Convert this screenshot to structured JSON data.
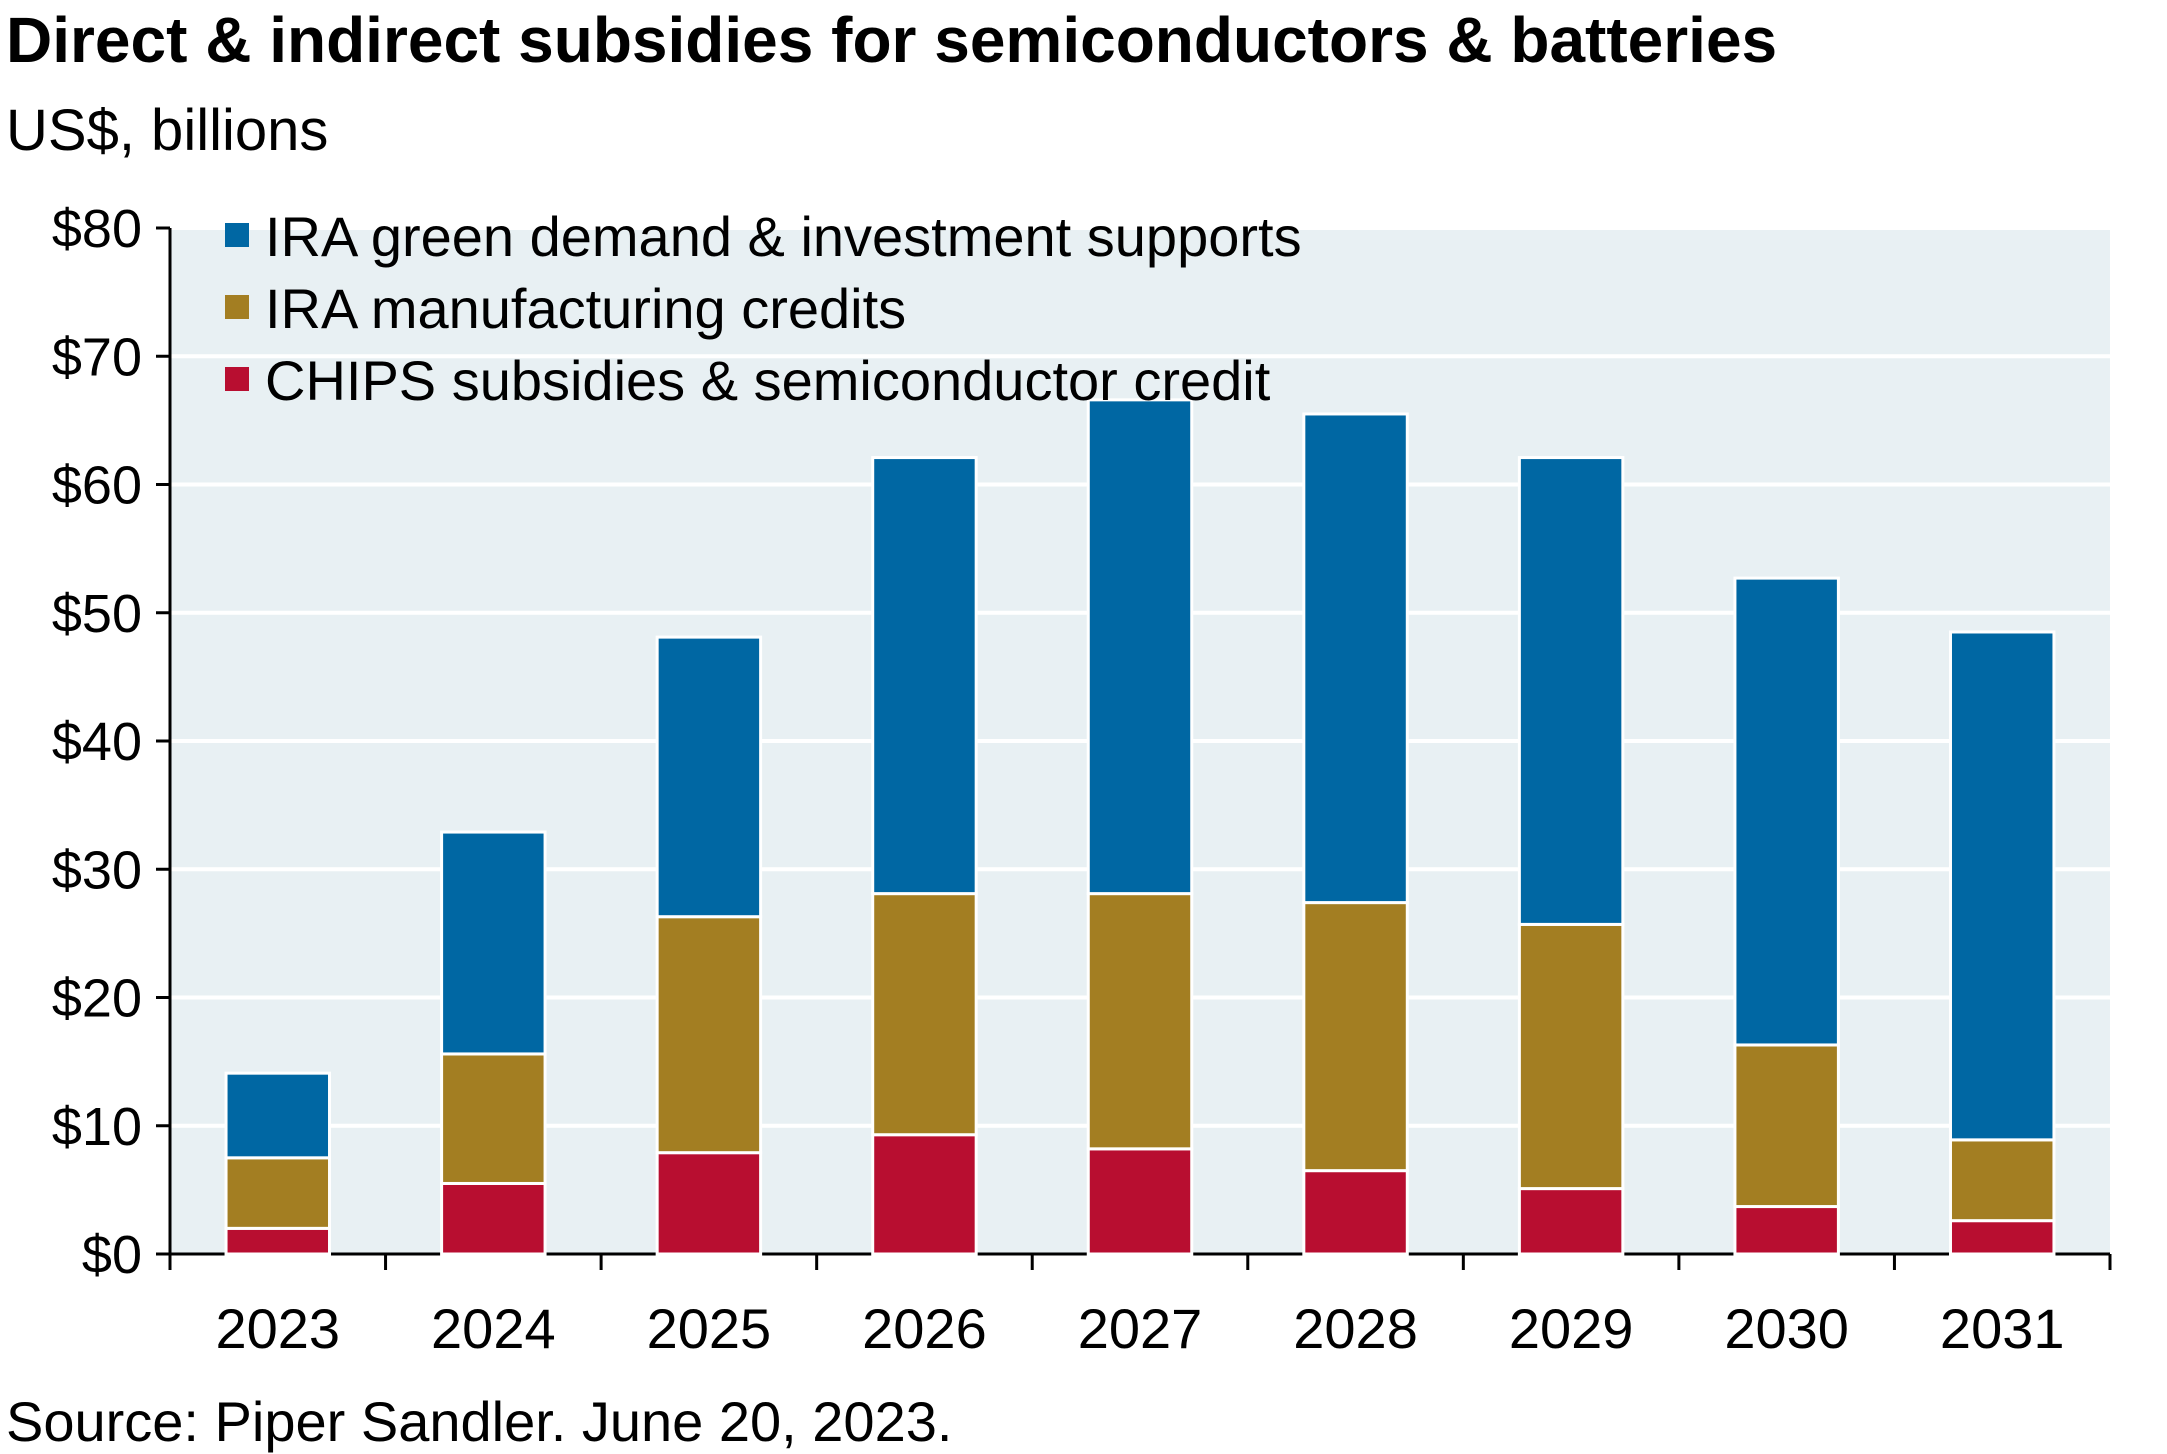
{
  "title": "Direct & indirect subsidies for semiconductors & batteries",
  "subtitle": "US$, billions",
  "source": "Source: Piper Sandler. June 20, 2023.",
  "colors": {
    "plot_background": "#e8f0f3",
    "grid": "#ffffff",
    "axis": "#000000"
  },
  "chart_data": {
    "type": "bar",
    "stacked": true,
    "categories": [
      "2023",
      "2024",
      "2025",
      "2026",
      "2027",
      "2028",
      "2029",
      "2030",
      "2031"
    ],
    "series": [
      {
        "name": "CHIPS subsidies & semiconductor credit",
        "color": "#b80e30",
        "values": [
          2.0,
          5.5,
          7.9,
          9.3,
          8.2,
          6.5,
          5.1,
          3.7,
          2.6
        ]
      },
      {
        "name": "IRA manufacturing credits",
        "color": "#a37e22",
        "values": [
          5.5,
          10.1,
          18.4,
          18.8,
          19.9,
          20.9,
          20.6,
          12.6,
          6.3
        ]
      },
      {
        "name": "IRA green demand & investment supports",
        "color": "#0067a3",
        "values": [
          6.6,
          17.3,
          21.8,
          34.0,
          38.5,
          38.1,
          36.4,
          36.4,
          39.6
        ]
      }
    ],
    "legend_order": [
      "IRA green demand & investment supports",
      "IRA manufacturing credits",
      "CHIPS subsidies & semiconductor credit"
    ],
    "legend_position": "top-left",
    "ylim": [
      0,
      80
    ],
    "yticks": [
      0,
      10,
      20,
      30,
      40,
      50,
      60,
      70,
      80
    ],
    "ytick_labels": [
      "$0",
      "$10",
      "$20",
      "$30",
      "$40",
      "$50",
      "$60",
      "$70",
      "$80"
    ],
    "grid": true,
    "xlabel": "",
    "ylabel": ""
  }
}
